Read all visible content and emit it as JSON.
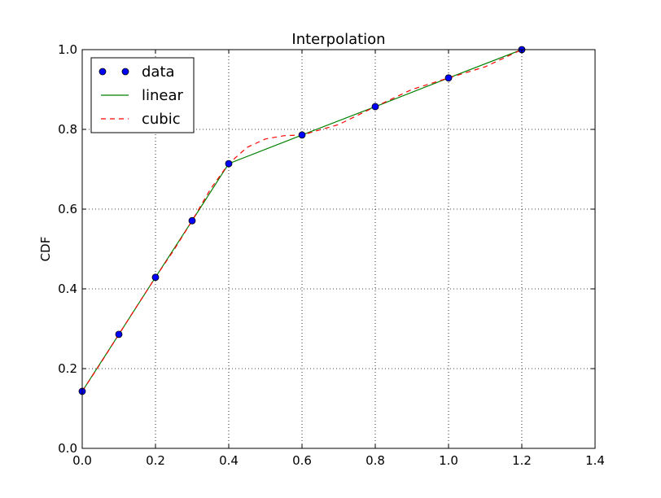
{
  "chart_data": {
    "type": "line",
    "title": "Interpolation",
    "xlabel": "",
    "ylabel": "CDF",
    "xlim": [
      0.0,
      1.4
    ],
    "ylim": [
      0.0,
      1.0
    ],
    "xticks": [
      "0.0",
      "0.2",
      "0.4",
      "0.6",
      "0.8",
      "1.0",
      "1.2",
      "1.4"
    ],
    "yticks": [
      "0.0",
      "0.2",
      "0.4",
      "0.6",
      "0.8",
      "1.0"
    ],
    "grid": true,
    "legend_position": "top-left",
    "series": [
      {
        "name": "data",
        "style": "markers",
        "color": "#0000ff",
        "x": [
          0.0,
          0.1,
          0.2,
          0.3,
          0.4,
          0.6,
          0.8,
          1.0,
          1.2
        ],
        "y": [
          0.143,
          0.286,
          0.429,
          0.571,
          0.714,
          0.786,
          0.857,
          0.929,
          1.0
        ]
      },
      {
        "name": "linear",
        "style": "solid",
        "color": "#008000",
        "x": [
          0.0,
          0.1,
          0.2,
          0.3,
          0.4,
          0.6,
          0.8,
          1.0,
          1.2
        ],
        "y": [
          0.143,
          0.286,
          0.429,
          0.571,
          0.714,
          0.786,
          0.857,
          0.929,
          1.0
        ]
      },
      {
        "name": "cubic",
        "style": "dashed",
        "color": "#ff0000",
        "x": [
          0.0,
          0.05,
          0.1,
          0.15,
          0.2,
          0.25,
          0.3,
          0.35,
          0.4,
          0.45,
          0.5,
          0.55,
          0.6,
          0.7,
          0.8,
          0.9,
          1.0,
          1.1,
          1.2
        ],
        "y": [
          0.143,
          0.213,
          0.286,
          0.358,
          0.429,
          0.497,
          0.571,
          0.65,
          0.714,
          0.755,
          0.776,
          0.784,
          0.786,
          0.812,
          0.857,
          0.9,
          0.929,
          0.957,
          1.0
        ]
      }
    ]
  }
}
